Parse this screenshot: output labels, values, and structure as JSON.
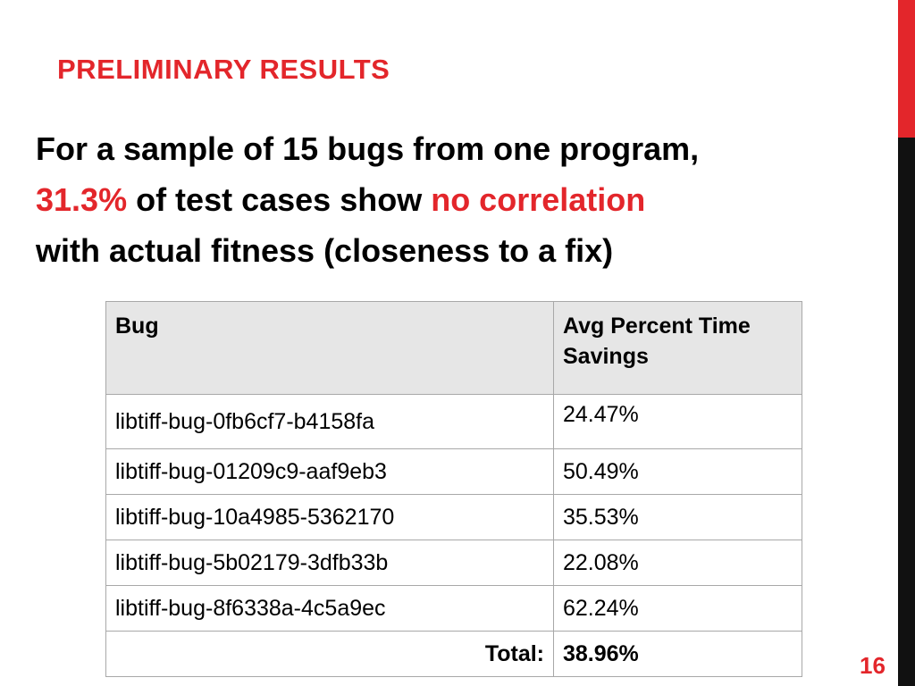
{
  "slide": {
    "title": "PRELIMINARY RESULTS",
    "body": {
      "line1": "For a sample of 15 bugs from one program,",
      "percent": "31.3%",
      "mid": " of test cases show ",
      "highlight": "no correlation",
      "line3": "with actual fitness (closeness to a fix)"
    },
    "table": {
      "headers": [
        "Bug",
        "Avg Percent Time Savings"
      ],
      "rows": [
        {
          "bug": "libtiff-bug-0fb6cf7-b4158fa",
          "savings": "24.47%"
        },
        {
          "bug": "libtiff-bug-01209c9-aaf9eb3",
          "savings": "50.49%"
        },
        {
          "bug": "libtiff-bug-10a4985-5362170",
          "savings": "35.53%"
        },
        {
          "bug": "libtiff-bug-5b02179-3dfb33b",
          "savings": "22.08%"
        },
        {
          "bug": "libtiff-bug-8f6338a-4c5a9ec",
          "savings": "62.24%"
        }
      ],
      "total_label": "Total:",
      "total_value": "38.96%"
    },
    "page_number": "16",
    "colors": {
      "accent": "#e3262b",
      "sidebar_dark": "#111111",
      "header_fill": "#e6e6e6"
    }
  }
}
